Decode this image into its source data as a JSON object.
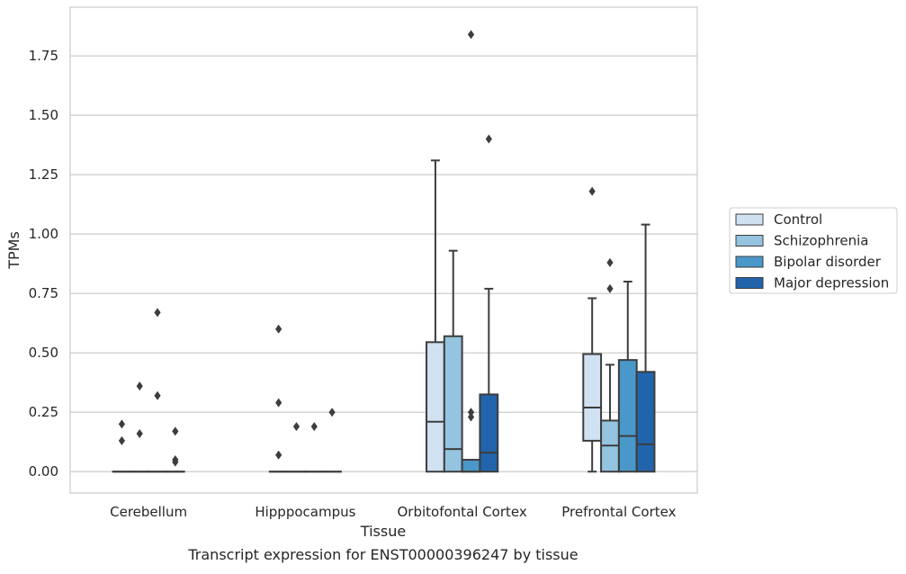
{
  "chart_data": {
    "type": "box",
    "title": "",
    "caption": "Transcript expression for ENST00000396247 by tissue",
    "xlabel": "Tissue",
    "ylabel": "TPMs",
    "ylim": [
      -0.09,
      1.955
    ],
    "yticks": [
      "0.00",
      "0.25",
      "0.50",
      "0.75",
      "1.00",
      "1.25",
      "1.50",
      "1.75"
    ],
    "ytick_values": [
      0,
      0.25,
      0.5,
      0.75,
      1.0,
      1.25,
      1.5,
      1.75
    ],
    "grid": true,
    "legend_position": "right",
    "categories": [
      "Cerebellum",
      "Hipppocampus",
      "Orbitofontal Cortex",
      "Prefrontal Cortex"
    ],
    "series": [
      {
        "name": "Control",
        "color": "#d0e1f2",
        "boxes": [
          {
            "q1": 0,
            "median": 0,
            "q3": 0,
            "whislo": 0,
            "whishi": 0,
            "fliers": [
              0.2,
              0.13
            ]
          },
          {
            "q1": 0,
            "median": 0,
            "q3": 0,
            "whislo": 0,
            "whishi": 0,
            "fliers": [
              0.6,
              0.29,
              0.07
            ]
          },
          {
            "q1": 0,
            "median": 0.21,
            "q3": 0.545,
            "whislo": 0,
            "whishi": 1.31,
            "fliers": []
          },
          {
            "q1": 0.13,
            "median": 0.27,
            "q3": 0.495,
            "whislo": 0,
            "whishi": 0.73,
            "fliers": [
              1.18
            ]
          }
        ]
      },
      {
        "name": "Schizophrenia",
        "color": "#94c4df",
        "boxes": [
          {
            "q1": 0,
            "median": 0,
            "q3": 0,
            "whislo": 0,
            "whishi": 0,
            "fliers": [
              0.36,
              0.16
            ]
          },
          {
            "q1": 0,
            "median": 0,
            "q3": 0,
            "whislo": 0,
            "whishi": 0,
            "fliers": [
              0.19
            ]
          },
          {
            "q1": 0,
            "median": 0.095,
            "q3": 0.57,
            "whislo": 0,
            "whishi": 0.93,
            "fliers": []
          },
          {
            "q1": 0,
            "median": 0.11,
            "q3": 0.215,
            "whislo": 0,
            "whishi": 0.45,
            "fliers": [
              0.88,
              0.77
            ]
          }
        ]
      },
      {
        "name": "Bipolar disorder",
        "color": "#4a98c9",
        "boxes": [
          {
            "q1": 0,
            "median": 0,
            "q3": 0,
            "whislo": 0,
            "whishi": 0,
            "fliers": [
              0.67,
              0.32
            ]
          },
          {
            "q1": 0,
            "median": 0,
            "q3": 0,
            "whislo": 0,
            "whishi": 0,
            "fliers": [
              0.19
            ]
          },
          {
            "q1": 0,
            "median": 0,
            "q3": 0.05,
            "whislo": 0,
            "whishi": 0.05,
            "fliers": [
              0.25,
              0.23,
              1.84
            ]
          },
          {
            "q1": 0,
            "median": 0.15,
            "q3": 0.47,
            "whislo": 0,
            "whishi": 0.8,
            "fliers": []
          }
        ]
      },
      {
        "name": "Major depression",
        "color": "#2164ab",
        "boxes": [
          {
            "q1": 0,
            "median": 0,
            "q3": 0,
            "whislo": 0,
            "whishi": 0,
            "fliers": [
              0.17,
              0.05,
              0.04
            ]
          },
          {
            "q1": 0,
            "median": 0,
            "q3": 0,
            "whislo": 0,
            "whishi": 0,
            "fliers": [
              0.25
            ]
          },
          {
            "q1": 0,
            "median": 0.08,
            "q3": 0.325,
            "whislo": 0,
            "whishi": 0.77,
            "fliers": [
              1.4
            ]
          },
          {
            "q1": 0,
            "median": 0.115,
            "q3": 0.42,
            "whislo": 0,
            "whishi": 1.04,
            "fliers": []
          }
        ]
      }
    ]
  }
}
